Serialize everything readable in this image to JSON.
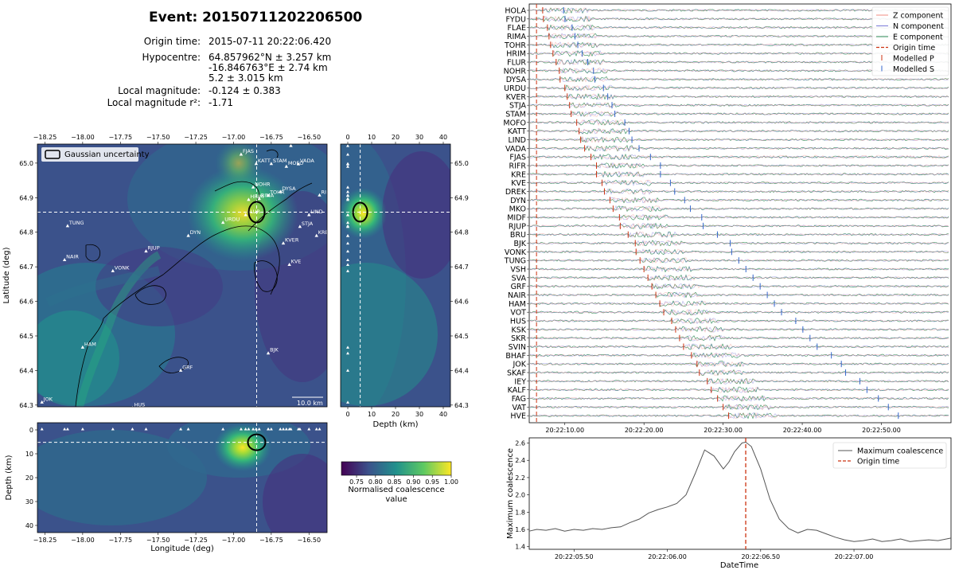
{
  "event": {
    "title": "Event: 20150711202206500",
    "origin_time_label": "Origin time:",
    "origin_time": "2015-07-11 20:22:06.420",
    "hypocentre_label": "Hypocentre:",
    "hypocentre_lat": "64.857962°N ± 3.257 km",
    "hypocentre_lon": "-16.846763°E ± 2.74 km",
    "hypocentre_depth": "5.2 ± 3.015 km",
    "local_mag_label": "Local magnitude:",
    "local_mag": "-0.124 ± 0.383",
    "local_mag_r2_label": "Local magnitude r²:",
    "local_mag_r2": "-1.71"
  },
  "map": {
    "xlabel": "Longitude (deg)",
    "ylabel": "Latitude (deg)",
    "legend": "Gaussian uncertainty",
    "scalebar": "10.0 km",
    "lon_ticks": [
      "−18.25",
      "−18.00",
      "−17.75",
      "−17.50",
      "−17.25",
      "−17.00",
      "−16.75",
      "−16.50"
    ],
    "lon_vals": [
      -18.25,
      -18.0,
      -17.75,
      -17.5,
      -17.25,
      -17.0,
      -16.75,
      -16.5
    ],
    "lat_ticks": [
      "65.0",
      "64.9",
      "64.8",
      "64.7",
      "64.6",
      "64.5",
      "64.4",
      "64.3"
    ],
    "lat_vals": [
      65.0,
      64.9,
      64.8,
      64.7,
      64.6,
      64.5,
      64.4,
      64.3
    ],
    "lon_range": [
      -18.3,
      -16.38
    ],
    "lat_range": [
      64.295,
      65.055
    ],
    "hypocentre": {
      "lon": -16.8468,
      "lat": 64.858,
      "depth": 5.2
    },
    "stations": [
      {
        "name": "FJAS",
        "lon": -16.95,
        "lat": 65.025
      },
      {
        "name": "DREK",
        "lon": -16.62,
        "lat": 65.05
      },
      {
        "name": "KATT",
        "lon": -16.85,
        "lat": 64.998
      },
      {
        "name": "STAM",
        "lon": -16.75,
        "lat": 64.998
      },
      {
        "name": "VADA",
        "lon": -16.57,
        "lat": 64.997
      },
      {
        "name": "MOFO",
        "lon": -16.65,
        "lat": 64.99
      },
      {
        "name": "NOHR",
        "lon": -16.87,
        "lat": 64.93
      },
      {
        "name": "TOHR",
        "lon": -16.77,
        "lat": 64.906
      },
      {
        "name": "DYSA",
        "lon": -16.69,
        "lat": 64.917
      },
      {
        "name": "HRIM",
        "lon": -16.9,
        "lat": 64.894
      },
      {
        "name": "RIMA",
        "lon": -16.83,
        "lat": 64.897
      },
      {
        "name": "FLUR",
        "lon": -16.92,
        "lat": 64.85
      },
      {
        "name": "URDU",
        "lon": -17.07,
        "lat": 64.828
      },
      {
        "name": "RIFF",
        "lon": -16.43,
        "lat": 64.907
      },
      {
        "name": "LIND",
        "lon": -16.5,
        "lat": 64.85
      },
      {
        "name": "STJA",
        "lon": -16.56,
        "lat": 64.816
      },
      {
        "name": "KRE",
        "lon": -16.45,
        "lat": 64.79
      },
      {
        "name": "KVER",
        "lon": -16.67,
        "lat": 64.768
      },
      {
        "name": "KVE",
        "lon": -16.63,
        "lat": 64.706
      },
      {
        "name": "TUNG",
        "lon": -18.1,
        "lat": 64.818
      },
      {
        "name": "DYN",
        "lon": -17.3,
        "lat": 64.79
      },
      {
        "name": "RJUP",
        "lon": -17.58,
        "lat": 64.745
      },
      {
        "name": "NAIR",
        "lon": -18.12,
        "lat": 64.72
      },
      {
        "name": "VONK",
        "lon": -17.8,
        "lat": 64.688
      },
      {
        "name": "HAM",
        "lon": -18.0,
        "lat": 64.467
      },
      {
        "name": "BJK",
        "lon": -16.77,
        "lat": 64.45
      },
      {
        "name": "GRF",
        "lon": -17.35,
        "lat": 64.4
      },
      {
        "name": "JOK",
        "lon": -18.27,
        "lat": 64.308
      },
      {
        "name": "HUS",
        "lon": -17.67,
        "lat": 64.292
      }
    ],
    "colorbar_label": "Normalised coalescence value",
    "colorbar_ticks": [
      "0.75",
      "0.80",
      "0.85",
      "0.90",
      "0.95",
      "1.00"
    ],
    "colorbar_vals": [
      0.75,
      0.8,
      0.85,
      0.9,
      0.95,
      1.0
    ],
    "colorbar_range": [
      0.71,
      1.0
    ],
    "colors": {
      "low": "#440154",
      "mid": "#21918c",
      "high": "#fde725"
    }
  },
  "depth_panel": {
    "xlabel": "Depth (km)",
    "ticks": [
      "0",
      "10",
      "20",
      "30",
      "40"
    ],
    "tick_vals": [
      0,
      10,
      20,
      30,
      40
    ],
    "range": [
      -3,
      43
    ],
    "ylabel": "Depth (km)"
  },
  "chart_data": {
    "type": "line",
    "title": "",
    "xlabel": "DateTime",
    "ylabel": "Maximum coalescence",
    "x_tick_labels": [
      "20:22:05.50",
      "20:22:06.00",
      "20:22:06.50",
      "20:22:07.00"
    ],
    "x_tick_vals": [
      5.5,
      6.0,
      6.5,
      7.0
    ],
    "xlim": [
      5.26,
      7.52
    ],
    "ylim": [
      1.37,
      2.66
    ],
    "y_ticks": [
      "1.4",
      "1.6",
      "1.8",
      "2.0",
      "2.2",
      "2.4",
      "2.6"
    ],
    "y_tick_vals": [
      1.4,
      1.6,
      1.8,
      2.0,
      2.2,
      2.4,
      2.6
    ],
    "origin_time_x": 6.42,
    "series": [
      {
        "name": "Maximum coalescence",
        "x": [
          5.26,
          5.3,
          5.35,
          5.4,
          5.45,
          5.5,
          5.55,
          5.6,
          5.65,
          5.7,
          5.75,
          5.8,
          5.85,
          5.9,
          5.95,
          6.0,
          6.05,
          6.1,
          6.15,
          6.2,
          6.25,
          6.3,
          6.33,
          6.36,
          6.4,
          6.42,
          6.45,
          6.5,
          6.55,
          6.6,
          6.65,
          6.7,
          6.75,
          6.8,
          6.85,
          6.9,
          6.95,
          7.0,
          7.05,
          7.1,
          7.15,
          7.2,
          7.25,
          7.3,
          7.35,
          7.4,
          7.45,
          7.52
        ],
        "values": [
          1.58,
          1.6,
          1.59,
          1.61,
          1.58,
          1.6,
          1.59,
          1.61,
          1.6,
          1.62,
          1.63,
          1.68,
          1.72,
          1.79,
          1.83,
          1.86,
          1.9,
          2.0,
          2.25,
          2.52,
          2.45,
          2.3,
          2.38,
          2.5,
          2.6,
          2.61,
          2.56,
          2.3,
          1.95,
          1.72,
          1.61,
          1.56,
          1.6,
          1.59,
          1.55,
          1.51,
          1.48,
          1.46,
          1.47,
          1.49,
          1.46,
          1.47,
          1.49,
          1.46,
          1.47,
          1.48,
          1.47,
          1.5
        ]
      }
    ],
    "legend": [
      "Maximum coalescence",
      "Origin time"
    ],
    "line_color": "#555555",
    "origin_color": "#cc3311"
  },
  "waveforms": {
    "stations": [
      "HOLA",
      "FYDU",
      "FLAE",
      "RIMA",
      "TOHR",
      "HRIM",
      "FLUR",
      "NOHR",
      "DYSA",
      "URDU",
      "KVER",
      "STJA",
      "STAM",
      "MOFO",
      "KATT",
      "LIND",
      "VADA",
      "FJAS",
      "RIFR",
      "KRE",
      "KVE",
      "DREK",
      "DYN",
      "MKO",
      "MIDF",
      "RJUP",
      "BRU",
      "BJK",
      "VONK",
      "TUNG",
      "VSH",
      "SVA",
      "GRF",
      "NAIR",
      "HAM",
      "VOT",
      "HUS",
      "KSK",
      "SKR",
      "SVIN",
      "BHAF",
      "JOK",
      "SKAF",
      "IEY",
      "KALF",
      "FAG",
      "VAT",
      "HVE"
    ],
    "time_ticks": [
      "20:22:10.00",
      "20:22:20.00",
      "20:22:30.00",
      "20:22:40.00",
      "20:22:50.00"
    ],
    "time_tick_vals": [
      10,
      20,
      30,
      40,
      50
    ],
    "time_range": [
      5.5,
      58.8
    ],
    "origin_time_s": 6.42,
    "p_picks_s": [
      7.2,
      7.3,
      7.8,
      8.0,
      8.2,
      8.5,
      8.9,
      9.3,
      9.4,
      10.0,
      10.3,
      10.6,
      10.8,
      11.5,
      11.8,
      12.0,
      12.5,
      13.3,
      14.0,
      14.0,
      14.7,
      15.0,
      15.7,
      16.1,
      16.9,
      17.0,
      18.0,
      18.9,
      19.0,
      19.5,
      20.0,
      20.5,
      21.0,
      21.5,
      22.0,
      22.5,
      23.5,
      24.0,
      24.5,
      25.0,
      26.0,
      26.7,
      27.0,
      28.0,
      28.5,
      29.3,
      30.0,
      30.7
    ],
    "legend": [
      "Z component",
      "N component",
      "E component",
      "Origin time",
      "Modelled P",
      "Modelled S"
    ],
    "colors": {
      "z": "#f28b82",
      "n": "#7b7bd8",
      "e": "#2e8b57",
      "origin": "#cc3311",
      "p": "#cc3311",
      "s": "#3366cc"
    }
  }
}
